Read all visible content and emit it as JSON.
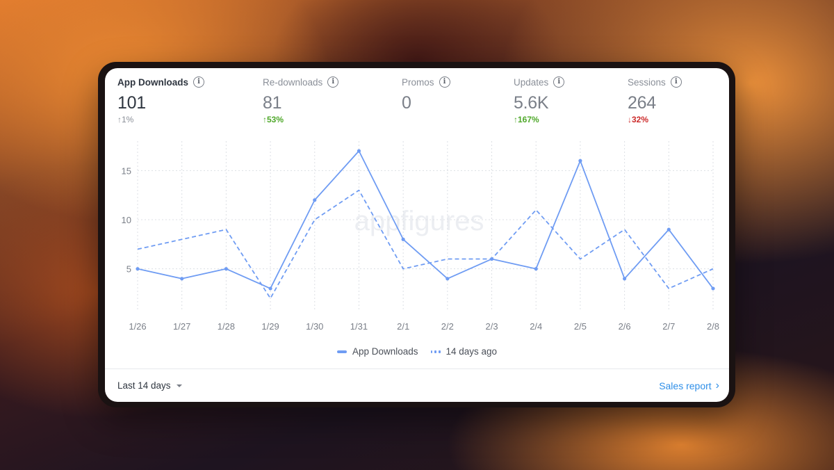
{
  "metrics": [
    {
      "label": "App Downloads",
      "value": "101",
      "change": "↑1%",
      "trend": "neutral",
      "active": true
    },
    {
      "label": "Re-downloads",
      "value": "81",
      "change": "↑53%",
      "trend": "up"
    },
    {
      "label": "Promos",
      "value": "0",
      "change": "",
      "trend": "neutral"
    },
    {
      "label": "Updates",
      "value": "5.6K",
      "change": "↑167%",
      "trend": "up"
    },
    {
      "label": "Sessions",
      "value": "264",
      "change": "↓32%",
      "trend": "down"
    }
  ],
  "info_glyph": "i",
  "watermark": "appfigures",
  "legend": {
    "current": "App Downloads",
    "previous": "14 days ago"
  },
  "footer": {
    "range_label": "Last 14 days",
    "report_link": "Sales report",
    "link_chevron": "›"
  },
  "colors": {
    "line": "#6f9cf3",
    "up": "#4fa82a",
    "down": "#cc2a2a",
    "link": "#2f8fe8"
  },
  "chart_data": {
    "type": "line",
    "categories": [
      "1/26",
      "1/27",
      "1/28",
      "1/29",
      "1/30",
      "1/31",
      "2/1",
      "2/2",
      "2/3",
      "2/4",
      "2/5",
      "2/6",
      "2/7",
      "2/8"
    ],
    "series": [
      {
        "name": "App Downloads",
        "style": "solid",
        "values": [
          5,
          4,
          5,
          3,
          12,
          17,
          8,
          4,
          6,
          5,
          16,
          4,
          9,
          3
        ]
      },
      {
        "name": "14 days ago",
        "style": "dashed",
        "values": [
          7,
          8,
          9,
          2,
          10,
          13,
          5,
          6,
          6,
          11,
          6,
          9,
          3,
          5
        ]
      }
    ],
    "yticks": [
      5,
      10,
      15
    ],
    "ylim": [
      0.8,
      18
    ],
    "grid": true,
    "legend_position": "bottom-center"
  }
}
